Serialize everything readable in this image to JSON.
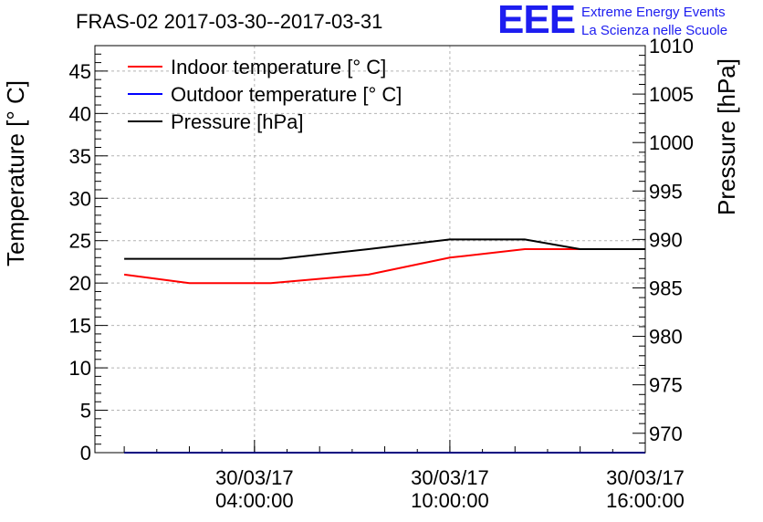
{
  "header": {
    "title": "FRAS-02 2017-03-30--2017-03-31",
    "logo_text": "EEE",
    "logo_line1": "Extreme Energy Events",
    "logo_line2": "La Scienza nelle Scuole"
  },
  "colors": {
    "indoor": "#ff0000",
    "outdoor": "#0000ff",
    "pressure": "#000000",
    "brand": "#1d1df0",
    "grid": "#b4b4b4"
  },
  "chart_data": {
    "type": "line",
    "title": "FRAS-02 2017-03-30--2017-03-31",
    "ylabel": "Temperature [° C]",
    "y2label": "Pressure [hPa]",
    "xlabel": "",
    "x_hours_range": [
      -0.9,
      16.0
    ],
    "ylim": [
      0,
      48
    ],
    "y2lim": [
      968,
      1010
    ],
    "y_ticks": [
      0,
      5,
      10,
      15,
      20,
      25,
      30,
      35,
      40,
      45
    ],
    "y2_ticks": [
      970,
      975,
      980,
      985,
      990,
      995,
      1000,
      1005,
      1010
    ],
    "x_ticks": [
      {
        "hour": 4,
        "date": "30/03/17",
        "time": "04:00:00"
      },
      {
        "hour": 10,
        "date": "30/03/17",
        "time": "10:00:00"
      },
      {
        "hour": 16,
        "date": "30/03/17",
        "time": "16:00:00"
      }
    ],
    "grid": true,
    "legend_position": "top-left",
    "series": [
      {
        "name": "Indoor temperature [° C]",
        "axis": "left",
        "color": "#ff0000",
        "x": [
          0,
          2,
          4.5,
          7.5,
          10,
          12.3,
          16
        ],
        "y": [
          21,
          20,
          20,
          21,
          23,
          24,
          24
        ]
      },
      {
        "name": "Outdoor temperature [° C]",
        "axis": "left",
        "color": "#0000ff",
        "x": [
          0,
          16
        ],
        "y": [
          0,
          0
        ]
      },
      {
        "name": "Pressure [hPa]",
        "axis": "right",
        "color": "#000000",
        "x": [
          0,
          4.8,
          7.5,
          10,
          12.3,
          14,
          16
        ],
        "y": [
          988,
          988,
          989,
          990,
          990,
          989,
          989
        ]
      }
    ]
  }
}
